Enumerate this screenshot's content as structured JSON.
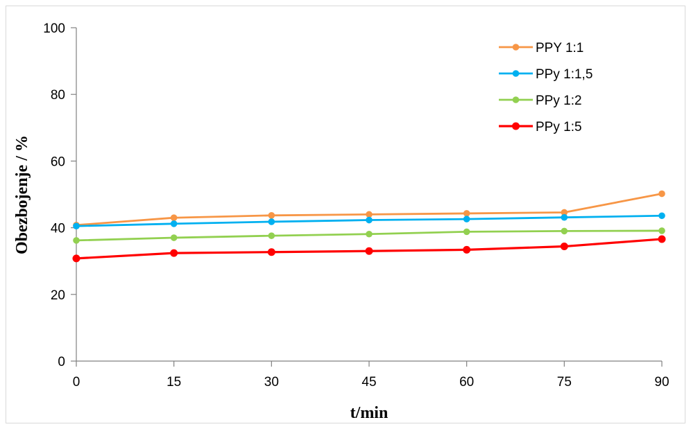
{
  "chart_data": {
    "type": "line",
    "title": "",
    "xlabel": "t/min",
    "ylabel": "Obezbojenje / %",
    "x": [
      0,
      15,
      30,
      45,
      60,
      75,
      90
    ],
    "xlim": [
      0,
      90
    ],
    "ylim": [
      0,
      100
    ],
    "xticks": [
      0,
      15,
      30,
      45,
      60,
      75,
      90
    ],
    "yticks": [
      0,
      20,
      40,
      60,
      80,
      100
    ],
    "grid": false,
    "legend_position": "top-right",
    "series": [
      {
        "name": "PPY 1:1",
        "color": "#f79646",
        "values": [
          40.8,
          43.0,
          43.7,
          44.0,
          44.3,
          44.6,
          50.2
        ]
      },
      {
        "name": "PPy 1:1,5",
        "color": "#00b0f0",
        "values": [
          40.5,
          41.2,
          41.8,
          42.3,
          42.6,
          43.1,
          43.6
        ]
      },
      {
        "name": "PPy 1:2",
        "color": "#92d050",
        "values": [
          36.2,
          37.0,
          37.6,
          38.1,
          38.8,
          39.0,
          39.1
        ]
      },
      {
        "name": "PPy 1:5",
        "color": "#ff0000",
        "values": [
          30.8,
          32.4,
          32.7,
          33.0,
          33.4,
          34.4,
          36.6
        ]
      }
    ]
  }
}
